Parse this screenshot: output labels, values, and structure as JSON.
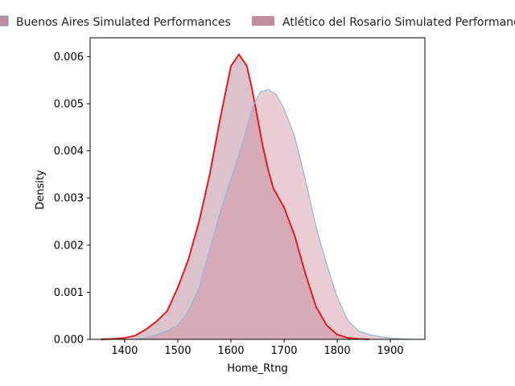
{
  "chart_data": {
    "type": "area",
    "title": "",
    "xlabel": "Home_Rtng",
    "ylabel": "Density",
    "xlim": [
      1335,
      1965
    ],
    "ylim": [
      0,
      0.0064
    ],
    "x_ticks": [
      1400,
      1500,
      1600,
      1700,
      1800,
      1900
    ],
    "x_tick_labels": [
      "1400",
      "1500",
      "1600",
      "1700",
      "1800",
      "1900"
    ],
    "y_ticks": [
      0,
      0.001,
      0.002,
      0.003,
      0.004,
      0.005,
      0.006
    ],
    "y_tick_labels": [
      "0.000",
      "0.001",
      "0.002",
      "0.003",
      "0.004",
      "0.005",
      "0.006"
    ],
    "grid": false,
    "legend_position": "top, above plot",
    "series": [
      {
        "name": "Buenos Aires Simulated Performances",
        "fill_color": "#b27a8c",
        "fill_opacity": 0.45,
        "line_color": "#e41a1c",
        "x": [
          1355,
          1380,
          1400,
          1420,
          1440,
          1460,
          1480,
          1500,
          1520,
          1540,
          1560,
          1580,
          1600,
          1615,
          1630,
          1640,
          1650,
          1660,
          1670,
          1680,
          1700,
          1720,
          1740,
          1760,
          1780,
          1800,
          1820,
          1840,
          1860
        ],
        "y": [
          0.0,
          1e-05,
          3e-05,
          8e-05,
          0.00021,
          0.00038,
          0.0006,
          0.0011,
          0.0017,
          0.0025,
          0.0035,
          0.0047,
          0.0058,
          0.00605,
          0.0058,
          0.0053,
          0.0047,
          0.0041,
          0.0036,
          0.0032,
          0.0028,
          0.0022,
          0.0014,
          0.0007,
          0.0003,
          0.0001,
          3e-05,
          1e-05,
          0.0
        ]
      },
      {
        "name": "Atlético del Rosario Simulated Performances",
        "fill_color": "#cf8fa0",
        "fill_opacity": 0.45,
        "line_color": "#8fb9d9",
        "x": [
          1420,
          1440,
          1460,
          1480,
          1500,
          1520,
          1540,
          1560,
          1580,
          1600,
          1620,
          1640,
          1655,
          1670,
          1685,
          1700,
          1720,
          1740,
          1760,
          1780,
          1800,
          1820,
          1840,
          1860,
          1880,
          1900,
          1920,
          1940
        ],
        "y": [
          0.0,
          3e-05,
          0.0001,
          0.00018,
          0.0003,
          0.0006,
          0.0011,
          0.0019,
          0.0027,
          0.0034,
          0.0041,
          0.0049,
          0.00525,
          0.0053,
          0.0052,
          0.0049,
          0.0043,
          0.0034,
          0.0024,
          0.0016,
          0.0009,
          0.0004,
          0.00018,
          0.0001,
          6e-05,
          3e-05,
          1e-05,
          0.0
        ]
      }
    ]
  }
}
